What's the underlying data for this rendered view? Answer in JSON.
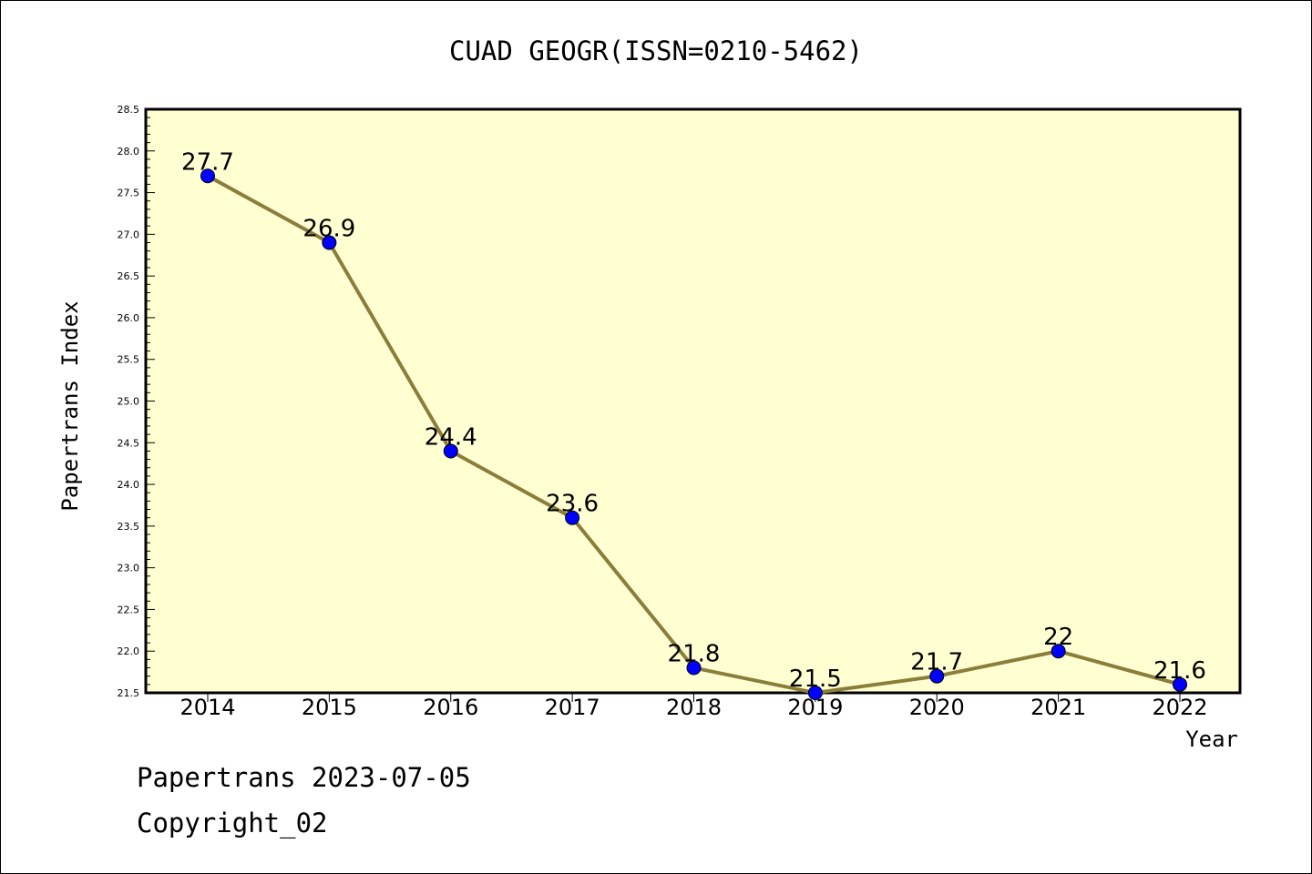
{
  "chart_data": {
    "type": "line",
    "title": "CUAD GEOGR(ISSN=0210-5462)",
    "xlabel": "Year",
    "ylabel": "Papertrans Index",
    "categories": [
      "2014",
      "2015",
      "2016",
      "2017",
      "2018",
      "2019",
      "2020",
      "2021",
      "2022"
    ],
    "series": [
      {
        "values": [
          27.7,
          26.9,
          24.4,
          23.6,
          21.8,
          21.5,
          21.7,
          22,
          21.6
        ],
        "labels": [
          "27.7",
          "26.9",
          "24.4",
          "23.6",
          "21.8",
          "21.5",
          "21.7",
          "22",
          "21.6"
        ]
      }
    ],
    "ylim": [
      21.5,
      28.5
    ],
    "yticks": [
      "21.5",
      "22.0",
      "22.5",
      "23.0",
      "23.5",
      "24.0",
      "24.5",
      "25.0",
      "25.5",
      "26.0",
      "26.5",
      "27.0",
      "27.5",
      "28.0",
      "28.5"
    ],
    "grid": false,
    "colors": {
      "plot_background": "#ffffd2",
      "line": "#8b7d3a",
      "marker": "#0000ff"
    }
  },
  "footer": {
    "line1": "Papertrans 2023-07-05",
    "line2": "Copyright_02"
  }
}
